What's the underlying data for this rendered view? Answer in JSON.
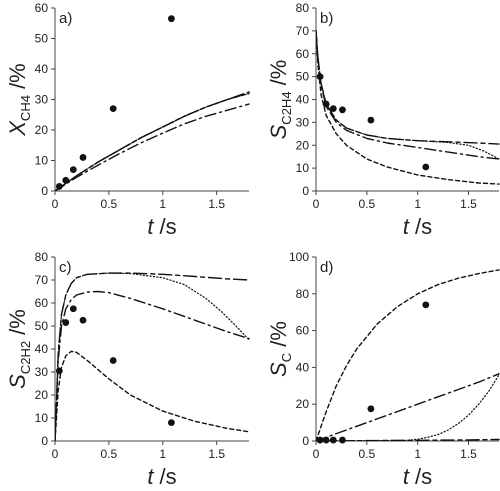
{
  "chart_data": [
    {
      "panel": "a)",
      "type": "line",
      "xlabel": {
        "italic": "t",
        "rest": " /s"
      },
      "ylabel": {
        "italic": "X",
        "sub": "CH4",
        "rest": " /%"
      },
      "xlim": [
        0,
        1.8
      ],
      "ylim": [
        0,
        60
      ],
      "xticks": [
        0,
        0.5,
        1,
        1.5
      ],
      "xtick_labels": [
        "0",
        "0.5",
        "1",
        "1.5"
      ],
      "yticks": [
        0,
        10,
        20,
        30,
        40,
        50,
        60
      ],
      "ytick_labels": [
        "0",
        "10",
        "20",
        "30",
        "40",
        "50",
        "60"
      ],
      "grid": false,
      "points": {
        "x": [
          0.04,
          0.1,
          0.17,
          0.26,
          0.54,
          1.08
        ],
        "y": [
          1.5,
          3.5,
          7,
          11,
          27,
          56.5
        ]
      },
      "series": [
        {
          "style": "dashed",
          "x": [
            0,
            0.2,
            0.4,
            0.6,
            0.8,
            1.0,
            1.2,
            1.4,
            1.6,
            1.8
          ],
          "y": [
            0,
            5,
            9.5,
            13.5,
            17.5,
            21,
            24.5,
            27.5,
            30,
            32
          ]
        },
        {
          "style": "longdash",
          "x": [
            0,
            0.2,
            0.4,
            0.6,
            0.8,
            1.0,
            1.2,
            1.4,
            1.6,
            1.8
          ],
          "y": [
            0,
            5,
            9.5,
            13.5,
            17.5,
            21,
            24.5,
            27.5,
            30,
            32.5
          ]
        },
        {
          "style": "dotted",
          "x": [
            0,
            0.2,
            0.4,
            0.6,
            0.8,
            1.0,
            1.2,
            1.4,
            1.6,
            1.8
          ],
          "y": [
            0,
            5,
            9.5,
            13.5,
            17.5,
            21,
            24.5,
            27.5,
            30,
            32
          ]
        },
        {
          "style": "dashdot",
          "x": [
            0,
            0.2,
            0.4,
            0.6,
            0.8,
            1.0,
            1.2,
            1.4,
            1.6,
            1.8
          ],
          "y": [
            0,
            4.5,
            8.5,
            12.3,
            15.8,
            19,
            22,
            24.5,
            26.5,
            28.5
          ]
        }
      ]
    },
    {
      "panel": "b)",
      "type": "line",
      "xlabel": {
        "italic": "t",
        "rest": " /s"
      },
      "ylabel": {
        "italic": "S",
        "sub": "C2H4",
        "rest": " /%"
      },
      "xlim": [
        0,
        1.8
      ],
      "ylim": [
        0,
        80
      ],
      "xticks": [
        0,
        0.5,
        1,
        1.5
      ],
      "xtick_labels": [
        "0",
        "0.5",
        "1",
        "1.5"
      ],
      "yticks": [
        0,
        10,
        20,
        30,
        40,
        50,
        60,
        70,
        80
      ],
      "ytick_labels": [
        "0",
        "10",
        "20",
        "30",
        "40",
        "50",
        "60",
        "70",
        "80"
      ],
      "grid": false,
      "points": {
        "x": [
          0.04,
          0.1,
          0.17,
          0.26,
          0.54,
          1.08
        ],
        "y": [
          50,
          38,
          36,
          35.5,
          31,
          10.5
        ]
      },
      "series": [
        {
          "style": "dashed",
          "x": [
            0,
            0.02,
            0.05,
            0.1,
            0.2,
            0.3,
            0.5,
            0.7,
            1.0,
            1.3,
            1.6,
            1.8
          ],
          "y": [
            70,
            55,
            42,
            33,
            25,
            20,
            14,
            10.5,
            7,
            5,
            3.5,
            3
          ]
        },
        {
          "style": "longdash",
          "x": [
            0,
            0.02,
            0.05,
            0.1,
            0.2,
            0.3,
            0.5,
            0.7,
            1.0,
            1.3,
            1.6,
            1.8
          ],
          "y": [
            70,
            58,
            47,
            38,
            31,
            27.5,
            24.5,
            23,
            22,
            21.5,
            21,
            20.5
          ]
        },
        {
          "style": "dotted",
          "x": [
            0,
            0.02,
            0.05,
            0.1,
            0.2,
            0.3,
            0.5,
            0.7,
            1.0,
            1.3,
            1.5,
            1.65,
            1.8
          ],
          "y": [
            70,
            58,
            47,
            38,
            31,
            27.5,
            24.5,
            23,
            22,
            21.2,
            20,
            17.5,
            14
          ]
        },
        {
          "style": "dashdot",
          "x": [
            0,
            0.02,
            0.05,
            0.1,
            0.2,
            0.3,
            0.5,
            0.7,
            1.0,
            1.3,
            1.6,
            1.8
          ],
          "y": [
            70,
            57,
            46,
            37,
            30,
            26.5,
            23,
            21,
            19,
            17,
            15,
            14
          ]
        }
      ]
    },
    {
      "panel": "c)",
      "type": "line",
      "xlabel": {
        "italic": "t",
        "rest": " /s"
      },
      "ylabel": {
        "italic": "S",
        "sub": "C2H2",
        "rest": " /%"
      },
      "xlim": [
        0,
        1.8
      ],
      "ylim": [
        0,
        80
      ],
      "xticks": [
        0,
        0.5,
        1,
        1.5
      ],
      "xtick_labels": [
        "0",
        "0.5",
        "1",
        "1.5"
      ],
      "yticks": [
        0,
        10,
        20,
        30,
        40,
        50,
        60,
        70,
        80
      ],
      "ytick_labels": [
        "0",
        "10",
        "20",
        "30",
        "40",
        "50",
        "60",
        "70",
        "80"
      ],
      "grid": false,
      "points": {
        "x": [
          0.04,
          0.1,
          0.17,
          0.26,
          0.54,
          1.08
        ],
        "y": [
          30.5,
          51.5,
          57.5,
          52.5,
          35,
          8
        ]
      },
      "series": [
        {
          "style": "dashed",
          "x": [
            0,
            0.03,
            0.06,
            0.1,
            0.15,
            0.2,
            0.3,
            0.5,
            0.7,
            1.0,
            1.3,
            1.6,
            1.8
          ],
          "y": [
            0,
            22,
            32,
            37,
            39,
            38.5,
            35,
            27,
            20,
            13,
            8.5,
            5.5,
            4
          ]
        },
        {
          "style": "longdash",
          "x": [
            0,
            0.03,
            0.06,
            0.1,
            0.15,
            0.2,
            0.3,
            0.5,
            0.7,
            1.0,
            1.3,
            1.6,
            1.8
          ],
          "y": [
            0,
            38,
            55,
            63.5,
            68.5,
            71,
            72.5,
            73,
            73,
            72.5,
            71.5,
            70.5,
            70
          ]
        },
        {
          "style": "dotted",
          "x": [
            0,
            0.03,
            0.06,
            0.1,
            0.15,
            0.2,
            0.3,
            0.5,
            0.7,
            1.0,
            1.2,
            1.4,
            1.55,
            1.7,
            1.8
          ],
          "y": [
            0,
            38,
            55,
            63.5,
            68.5,
            71,
            72.5,
            73,
            72.8,
            71,
            68,
            62,
            56,
            49,
            44
          ]
        },
        {
          "style": "dashdot",
          "x": [
            0,
            0.03,
            0.06,
            0.1,
            0.15,
            0.2,
            0.3,
            0.4,
            0.5,
            0.7,
            1.0,
            1.3,
            1.6,
            1.8
          ],
          "y": [
            0,
            35,
            50,
            57.5,
            61.5,
            63.5,
            64.8,
            65,
            64.5,
            62,
            57.5,
            52.5,
            47.5,
            44.5
          ]
        }
      ]
    },
    {
      "panel": "d)",
      "type": "line",
      "xlabel": {
        "italic": "t",
        "rest": " /s"
      },
      "ylabel": {
        "italic": "S",
        "sub": "C",
        "rest": " /%"
      },
      "xlim": [
        0,
        1.8
      ],
      "ylim": [
        0,
        100
      ],
      "xticks": [
        0,
        0.5,
        1,
        1.5
      ],
      "xtick_labels": [
        "0",
        "0.5",
        "1",
        "1.5"
      ],
      "yticks": [
        0,
        20,
        40,
        60,
        80,
        100
      ],
      "ytick_labels": [
        "0",
        "20",
        "40",
        "60",
        "80",
        "100"
      ],
      "grid": false,
      "points": {
        "x": [
          0.04,
          0.1,
          0.17,
          0.26,
          0.54,
          1.08
        ],
        "y": [
          0.5,
          0.5,
          0.5,
          0.5,
          17.5,
          74
        ]
      },
      "series": [
        {
          "style": "dashed",
          "x": [
            0,
            0.1,
            0.2,
            0.3,
            0.4,
            0.6,
            0.8,
            1.0,
            1.2,
            1.4,
            1.6,
            1.8
          ],
          "y": [
            0,
            16,
            30,
            41,
            50,
            63.5,
            73,
            80,
            85,
            88.5,
            91,
            93
          ]
        },
        {
          "style": "longdash",
          "x": [
            0,
            0.5,
            1.0,
            1.5,
            1.8
          ],
          "y": [
            0,
            0.2,
            0.4,
            0.6,
            0.8
          ]
        },
        {
          "style": "dotted",
          "x": [
            0,
            0.9,
            1.0,
            1.1,
            1.2,
            1.3,
            1.4,
            1.5,
            1.6,
            1.7,
            1.8
          ],
          "y": [
            0,
            0.3,
            1,
            2,
            3.5,
            6,
            9.5,
            14,
            20,
            27,
            36
          ]
        },
        {
          "style": "dashdot",
          "x": [
            0,
            0.2,
            0.4,
            0.6,
            0.8,
            1.0,
            1.2,
            1.4,
            1.6,
            1.8
          ],
          "y": [
            0,
            4,
            8,
            12,
            16,
            20,
            24,
            28,
            32,
            36.5
          ]
        }
      ]
    }
  ]
}
